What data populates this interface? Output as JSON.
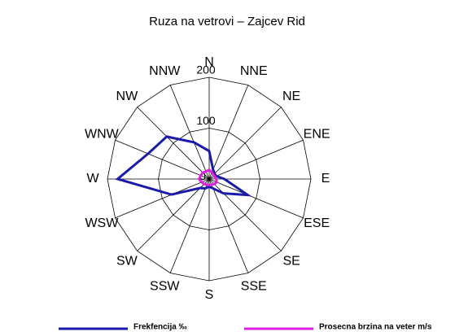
{
  "chart_data": {
    "type": "radar",
    "title": "Ruza na vetrovi – Zajcev Rid",
    "categories": [
      "N",
      "NNE",
      "NE",
      "ENE",
      "E",
      "ESE",
      "SE",
      "SSE",
      "S",
      "SSW",
      "SW",
      "WSW",
      "W",
      "WNW",
      "NW",
      "NNW"
    ],
    "rlim": [
      0,
      200
    ],
    "rticks": [
      0,
      100,
      200
    ],
    "series": [
      {
        "name": "Frekfencija ‰",
        "color": "#1a1aaa",
        "values": [
          55,
          20,
          15,
          15,
          30,
          82,
          40,
          20,
          15,
          20,
          25,
          80,
          180,
          130,
          118,
          78
        ]
      },
      {
        "name": "Prosecna brzina na veter m/s",
        "color": "#e020e0",
        "values": [
          18,
          14,
          12,
          12,
          14,
          16,
          14,
          12,
          12,
          12,
          14,
          16,
          20,
          18,
          18,
          16
        ]
      }
    ]
  }
}
